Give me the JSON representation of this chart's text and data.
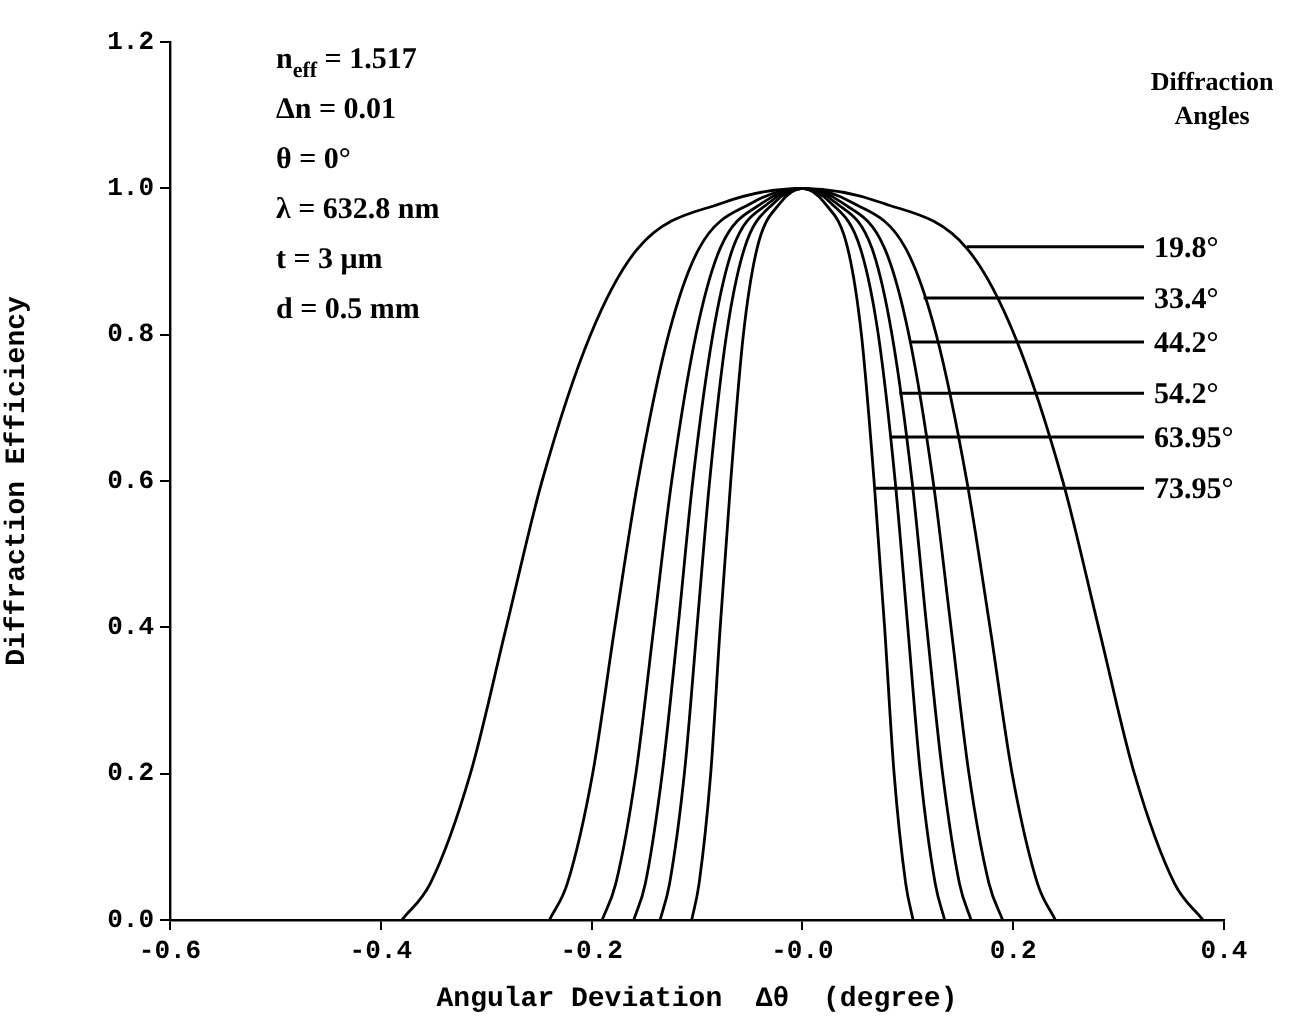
{
  "chart_data": {
    "type": "line",
    "xlabel": "Angular Deviation  Δθ  (degree)",
    "ylabel": "Diffraction Efficiency",
    "xlim": [
      -0.6,
      0.4
    ],
    "xticks": [
      -0.6,
      -0.4,
      -0.2,
      {
        "value": 0,
        "label": "-0.0"
      },
      0.2,
      0.4
    ],
    "ylim": [
      0,
      1.2
    ],
    "yticks": [
      {
        "value": 0,
        "label": "0.0"
      },
      0.2,
      0.4,
      0.6,
      0.8,
      {
        "value": 1,
        "label": "1.0"
      },
      1.2
    ],
    "grid": false,
    "legend": false,
    "marker": "none",
    "line_style": "solid",
    "series": [
      {
        "color": "#000000",
        "x": [
          -0.38,
          -0.353,
          -0.315,
          -0.281,
          -0.247,
          -0.201,
          -0.156,
          -0.076,
          0,
          0.076,
          0.156,
          0.201,
          0.247,
          0.281,
          0.315,
          0.353,
          0.38
        ],
        "values": [
          0,
          0.05,
          0.2,
          0.4,
          0.6,
          0.8,
          0.918,
          0.98,
          1.0,
          0.98,
          0.918,
          0.8,
          0.6,
          0.4,
          0.2,
          0.05,
          0
        ]
      },
      {
        "color": "#000000",
        "x": [
          -0.24,
          -0.223,
          -0.199,
          -0.178,
          -0.156,
          -0.127,
          -0.098,
          -0.048,
          0,
          0.048,
          0.098,
          0.127,
          0.156,
          0.178,
          0.199,
          0.223,
          0.24
        ],
        "values": [
          0,
          0.05,
          0.2,
          0.4,
          0.6,
          0.8,
          0.918,
          0.98,
          1.0,
          0.98,
          0.918,
          0.8,
          0.6,
          0.4,
          0.2,
          0.05,
          0
        ]
      },
      {
        "color": "#000000",
        "x": [
          -0.19,
          -0.177,
          -0.158,
          -0.141,
          -0.124,
          -0.101,
          -0.078,
          -0.038,
          0,
          0.038,
          0.078,
          0.101,
          0.124,
          0.141,
          0.158,
          0.177,
          0.19
        ],
        "values": [
          0,
          0.05,
          0.2,
          0.4,
          0.6,
          0.8,
          0.918,
          0.98,
          1.0,
          0.98,
          0.918,
          0.8,
          0.6,
          0.4,
          0.2,
          0.05,
          0
        ]
      },
      {
        "color": "#000000",
        "x": [
          -0.16,
          -0.149,
          -0.133,
          -0.118,
          -0.104,
          -0.085,
          -0.066,
          -0.032,
          0,
          0.032,
          0.066,
          0.085,
          0.104,
          0.118,
          0.133,
          0.149,
          0.16
        ],
        "values": [
          0,
          0.05,
          0.2,
          0.4,
          0.6,
          0.8,
          0.918,
          0.98,
          1.0,
          0.98,
          0.918,
          0.8,
          0.6,
          0.4,
          0.2,
          0.05,
          0
        ]
      },
      {
        "color": "#000000",
        "x": [
          -0.135,
          -0.126,
          -0.112,
          -0.1,
          -0.088,
          -0.072,
          -0.055,
          -0.027,
          0,
          0.027,
          0.055,
          0.072,
          0.088,
          0.1,
          0.112,
          0.126,
          0.135
        ],
        "values": [
          0,
          0.05,
          0.2,
          0.4,
          0.6,
          0.8,
          0.918,
          0.98,
          1.0,
          0.98,
          0.918,
          0.8,
          0.6,
          0.4,
          0.2,
          0.05,
          0
        ]
      },
      {
        "color": "#000000",
        "x": [
          -0.105,
          -0.098,
          -0.087,
          -0.078,
          -0.068,
          -0.056,
          -0.043,
          -0.021,
          0,
          0.021,
          0.043,
          0.056,
          0.068,
          0.078,
          0.087,
          0.098,
          0.105
        ],
        "values": [
          0,
          0.05,
          0.2,
          0.4,
          0.6,
          0.8,
          0.918,
          0.98,
          1.0,
          0.98,
          0.918,
          0.8,
          0.6,
          0.4,
          0.2,
          0.05,
          0
        ]
      }
    ],
    "annotations": [
      "n$_{eff}$ = 1.517",
      "Δn = 0.01",
      "θ = 0°",
      "λ = 632.8 nm",
      "t = 3 μm",
      "d = 0.5 mm",
      "Diffraction Angles",
      {
        "text": "19.8°",
        "x": 0.156,
        "y": 0.92
      },
      {
        "text": "33.4°",
        "x": 0.115,
        "y": 0.85
      },
      {
        "text": "44.2°",
        "x": 0.103,
        "y": 0.79
      },
      {
        "text": "54.2°",
        "x": 0.092,
        "y": 0.72
      },
      {
        "text": "63.95°",
        "x": 0.083,
        "y": 0.66
      },
      {
        "text": "73.95°",
        "x": 0.069,
        "y": 0.59
      }
    ]
  }
}
